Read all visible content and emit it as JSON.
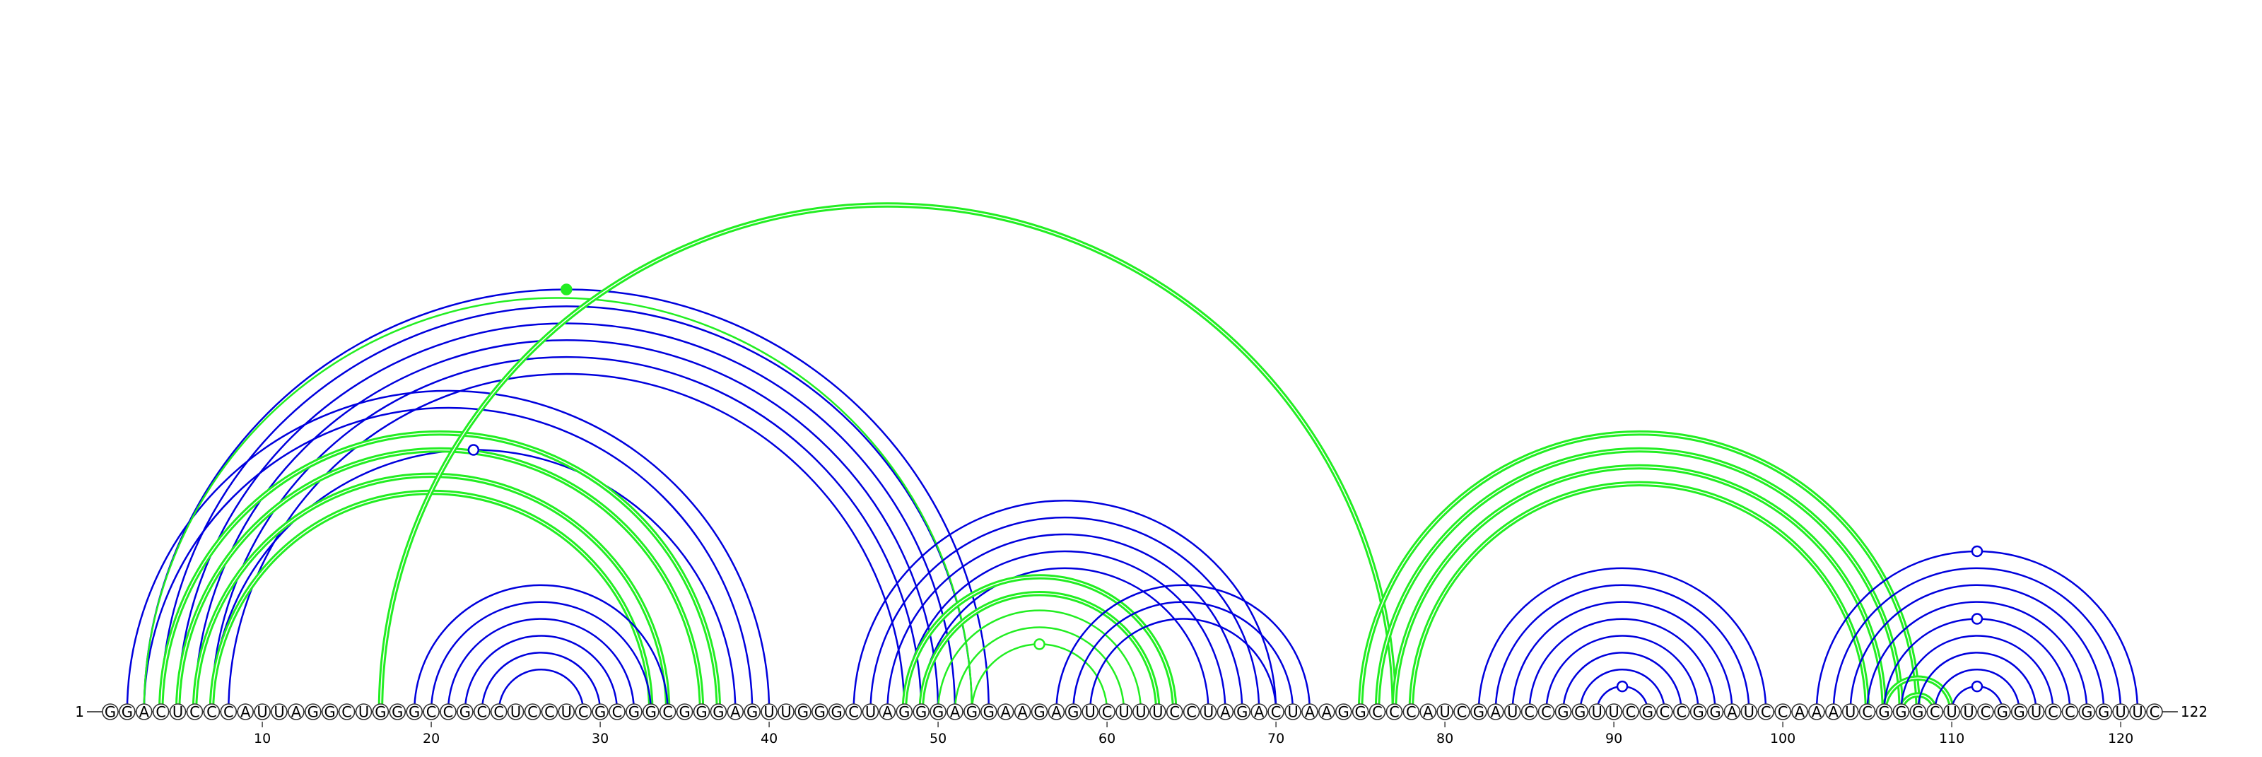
{
  "diagram": {
    "type": "rna-arc-diagram",
    "sequence": "GGACUCCCAUUAGGCUGGGCCGCCUCCUCGCGGCGGGAGUUGGGCUAGGGAGGAAGAGUCUUUCCUAGACUAAGGCCCAUCGAUCCGGUUCGCCGGAUCCAAAUCGGGCUUCGGUCCGGUUC",
    "start_label": "1",
    "end_label": "122",
    "tick_labels": [
      "10",
      "20",
      "30",
      "40",
      "50",
      "60",
      "70",
      "80",
      "90",
      "100",
      "110",
      "120"
    ],
    "colors": {
      "blue": "#0000dd",
      "green": "#22ee22",
      "base_stroke": "#333333",
      "base_fill": "#ffffff"
    },
    "arcs": [
      {
        "color": "blue",
        "width": "thin",
        "pairs": [
          [
            3,
            53
          ],
          [
            4,
            52
          ],
          [
            5,
            51
          ],
          [
            6,
            50
          ],
          [
            7,
            49
          ],
          [
            8,
            48
          ]
        ]
      },
      {
        "color": "blue",
        "width": "thin",
        "pairs": [
          [
            2,
            40
          ],
          [
            3,
            39
          ],
          [
            7,
            38
          ]
        ]
      },
      {
        "color": "green",
        "width": "thick",
        "pairs": [
          [
            4,
            37
          ],
          [
            5,
            36
          ],
          [
            6,
            34
          ],
          [
            7,
            33
          ]
        ]
      },
      {
        "color": "green",
        "width": "thin",
        "pairs": [
          [
            3,
            52
          ]
        ]
      },
      {
        "color": "green",
        "width": "thick",
        "pairs": [
          [
            17,
            77
          ]
        ]
      },
      {
        "color": "blue",
        "width": "thin",
        "pairs": [
          [
            19,
            34
          ],
          [
            20,
            33
          ],
          [
            21,
            32
          ],
          [
            22,
            31
          ],
          [
            23,
            30
          ],
          [
            24,
            29
          ]
        ]
      },
      {
        "color": "blue",
        "width": "thin",
        "pairs": [
          [
            45,
            70
          ],
          [
            46,
            69
          ],
          [
            47,
            68
          ],
          [
            48,
            67
          ],
          [
            49,
            66
          ]
        ]
      },
      {
        "color": "green",
        "width": "thick",
        "pairs": [
          [
            48,
            64
          ],
          [
            49,
            63
          ]
        ]
      },
      {
        "color": "green",
        "width": "thin",
        "pairs": [
          [
            50,
            62
          ],
          [
            51,
            61
          ],
          [
            52,
            60
          ]
        ]
      },
      {
        "color": "blue",
        "width": "thin",
        "pairs": [
          [
            57,
            72
          ],
          [
            58,
            71
          ],
          [
            59,
            70
          ]
        ]
      },
      {
        "color": "green",
        "width": "thick",
        "pairs": [
          [
            75,
            108
          ],
          [
            76,
            107
          ],
          [
            77,
            106
          ],
          [
            78,
            105
          ]
        ]
      },
      {
        "color": "blue",
        "width": "thin",
        "pairs": [
          [
            82,
            99
          ],
          [
            83,
            98
          ],
          [
            84,
            97
          ],
          [
            85,
            96
          ],
          [
            86,
            95
          ],
          [
            87,
            94
          ],
          [
            88,
            93
          ],
          [
            89,
            92
          ]
        ]
      },
      {
        "color": "green",
        "width": "thick",
        "pairs": [
          [
            106,
            110
          ],
          [
            107,
            109
          ]
        ]
      },
      {
        "color": "blue",
        "width": "thin",
        "pairs": [
          [
            102,
            121
          ],
          [
            103,
            120
          ],
          [
            104,
            119
          ],
          [
            105,
            118
          ],
          [
            106,
            117
          ],
          [
            107,
            116
          ],
          [
            108,
            115
          ],
          [
            109,
            114
          ],
          [
            110,
            113
          ]
        ]
      }
    ],
    "markers": [
      {
        "pair": [
          3,
          53
        ],
        "filled": true,
        "color": "green"
      },
      {
        "pair": [
          7,
          38
        ],
        "filled": false,
        "color": "blue"
      },
      {
        "pair": [
          52,
          60
        ],
        "filled": false,
        "color": "green"
      },
      {
        "pair": [
          89,
          92
        ],
        "filled": false,
        "color": "blue"
      },
      {
        "pair": [
          110,
          113
        ],
        "filled": false,
        "color": "blue"
      },
      {
        "pair": [
          106,
          117
        ],
        "filled": false,
        "color": "blue"
      },
      {
        "pair": [
          102,
          121
        ],
        "filled": false,
        "color": "blue"
      }
    ]
  }
}
